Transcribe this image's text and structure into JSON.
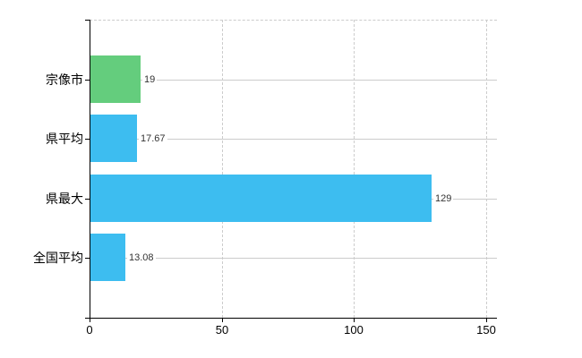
{
  "chart_data": {
    "type": "bar",
    "orientation": "horizontal",
    "title": "",
    "categories": [
      "宗像市",
      "県平均",
      "県最大",
      "全国平均"
    ],
    "values": [
      19,
      17.67,
      129,
      13.08
    ],
    "value_labels": [
      "19",
      "17.67",
      "129",
      "13.08"
    ],
    "bar_colors": [
      "#64cd7d",
      "#3dbdf0",
      "#3dbdf0",
      "#3dbdf0"
    ],
    "xlim": [
      0,
      150
    ],
    "x_ticks": [
      0,
      50,
      100,
      150
    ],
    "x_tick_labels": [
      "0",
      "50",
      "100",
      "150"
    ],
    "grid": true,
    "grid_style": {
      "vertical": "dashed",
      "horizontal": "solid",
      "top_border": "dashed"
    },
    "legend": false,
    "xlabel": "",
    "ylabel": ""
  },
  "style": {
    "background": "#ffffff",
    "axis_color": "#000000",
    "grid_color": "#cccccc",
    "category_label_color": "#000000",
    "value_label_color": "#333333",
    "tick_label_color": "#000000"
  }
}
